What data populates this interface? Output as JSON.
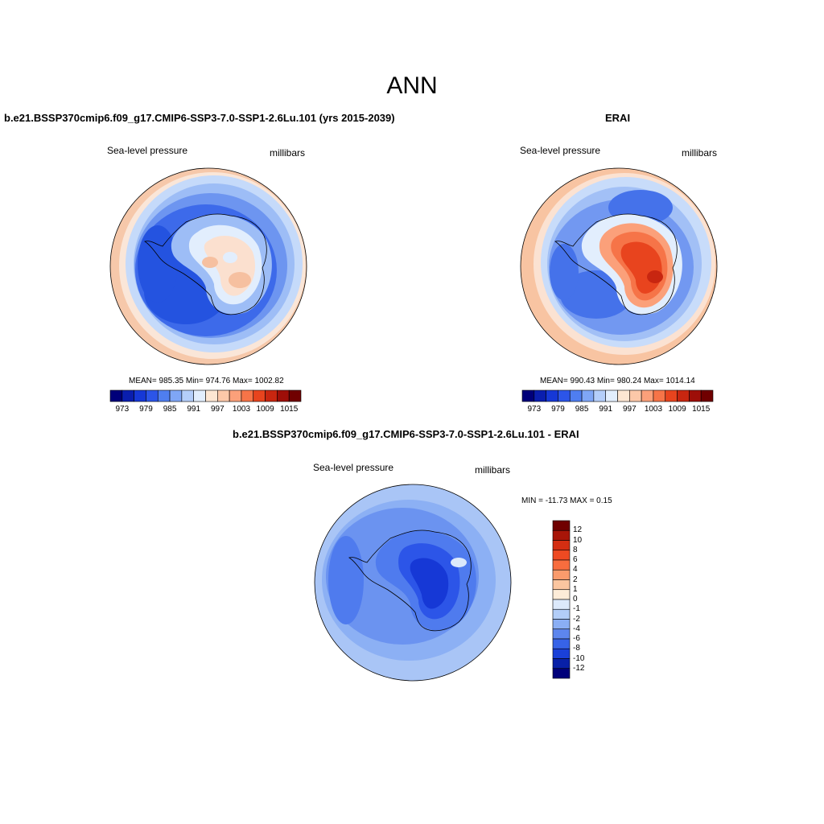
{
  "figure_title": "ANN",
  "panels": {
    "model": {
      "title": "b.e21.BSSP370cmip6.f09_g17.CMIP6-SSP3-7.0-SSP1-2.6Lu.101 (yrs 2015-2039)",
      "variable": "Sea-level pressure",
      "units": "millibars",
      "stats": "MEAN= 985.35  Min= 974.76  Max= 1002.82"
    },
    "obs": {
      "title": "ERAI",
      "variable": "Sea-level pressure",
      "units": "millibars",
      "stats": "MEAN= 990.43  Min= 980.24  Max= 1014.14"
    },
    "diff": {
      "title": "b.e21.BSSP370cmip6.f09_g17.CMIP6-SSP3-7.0-SSP1-2.6Lu.101 - ERAI",
      "variable": "Sea-level pressure",
      "units": "millibars",
      "stats": "MIN = -11.73 MAX =   0.15"
    }
  },
  "colorbar_main": {
    "tick_labels": [
      "973",
      "979",
      "985",
      "991",
      "997",
      "1003",
      "1009",
      "1015"
    ],
    "colors": [
      "#00007a",
      "#0a1eae",
      "#1638d6",
      "#2c55e8",
      "#4f7ef0",
      "#7fa6f6",
      "#b4cefa",
      "#e2eefd",
      "#fde6d2",
      "#fcc8a9",
      "#fba07a",
      "#f67448",
      "#e8441e",
      "#c82610",
      "#9e0e08",
      "#700000"
    ]
  },
  "colorbar_diff": {
    "tick_labels": [
      "12",
      "10",
      "8",
      "6",
      "4",
      "2",
      "1",
      "0",
      "-1",
      "-2",
      "-4",
      "-6",
      "-8",
      "-10",
      "-12"
    ],
    "colors": [
      "#700000",
      "#a81508",
      "#d42e12",
      "#ee4a22",
      "#f86d3e",
      "#fa9b6c",
      "#fbc6a0",
      "#fdecd8",
      "#dce9fb",
      "#b2cdf8",
      "#8aaef4",
      "#5d86ee",
      "#3763e8",
      "#1a40d8",
      "#0820a8",
      "#00007a"
    ]
  },
  "map_colors": {
    "model_rings": [
      "#f6c8aa",
      "#fae6d8",
      "#c5dafa",
      "#9dbdf6",
      "#6d95f0",
      "#3d6aea",
      "#2453e0"
    ],
    "obs_rings": [
      "#f8c4a2",
      "#fbe2d2",
      "#c8dcfa",
      "#a2c0f6",
      "#7298f1",
      "#4572ea",
      "#2c5ce4"
    ],
    "diff_rings": [
      "#a9c5f6",
      "#8cb0f4",
      "#6b93f0",
      "#4f7bee"
    ]
  }
}
